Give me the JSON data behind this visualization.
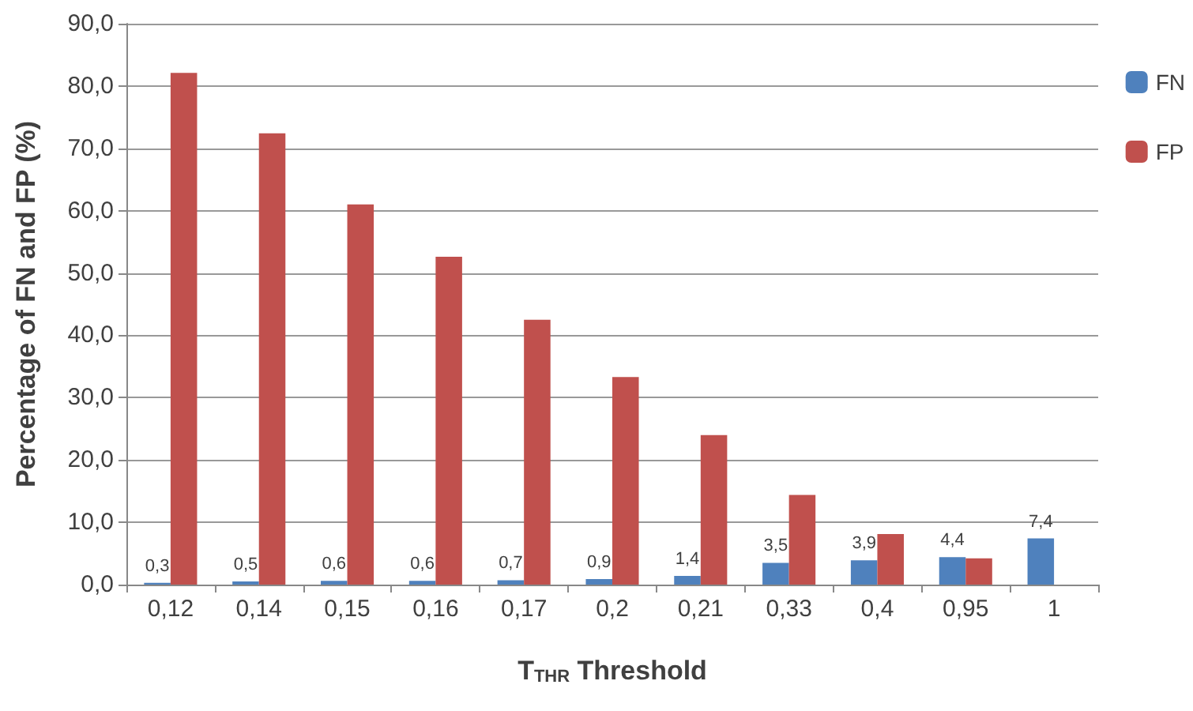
{
  "chart_data": {
    "type": "bar",
    "xlabel": "T$_{THR}$ Threshold",
    "ylabel": "Percentage of FN and FP (%)",
    "categories": [
      "0,12",
      "0,14",
      "0,15",
      "0,16",
      "0,17",
      "0,2",
      "0,21",
      "0,33",
      "0,4",
      "0,95",
      "1"
    ],
    "series": [
      {
        "name": "FN",
        "color": "#4f81bd",
        "values": [
          0.3,
          0.5,
          0.6,
          0.6,
          0.7,
          0.9,
          1.4,
          3.5,
          3.9,
          4.4,
          7.4
        ],
        "value_labels": [
          "0,3",
          "0,5",
          "0,6",
          "0,6",
          "0,7",
          "0,9",
          "1,4",
          "3,5",
          "3,9",
          "4,4",
          "7,4"
        ]
      },
      {
        "name": "FP",
        "color": "#c0504d",
        "values": [
          82.1,
          72.4,
          61.0,
          52.6,
          42.5,
          33.3,
          24.0,
          14.4,
          8.1,
          4.2,
          null
        ]
      }
    ],
    "ylim": [
      0,
      90
    ],
    "yticks": [
      {
        "value": 0,
        "label": "0,0"
      },
      {
        "value": 10,
        "label": "10,0"
      },
      {
        "value": 20,
        "label": "20,0"
      },
      {
        "value": 30,
        "label": "30,0"
      },
      {
        "value": 40,
        "label": "40,0"
      },
      {
        "value": 50,
        "label": "50,0"
      },
      {
        "value": 60,
        "label": "60,0"
      },
      {
        "value": 70,
        "label": "70,0"
      },
      {
        "value": 80,
        "label": "80,0"
      },
      {
        "value": 90,
        "label": "90,0"
      }
    ],
    "grid": "y",
    "legend": "right"
  }
}
